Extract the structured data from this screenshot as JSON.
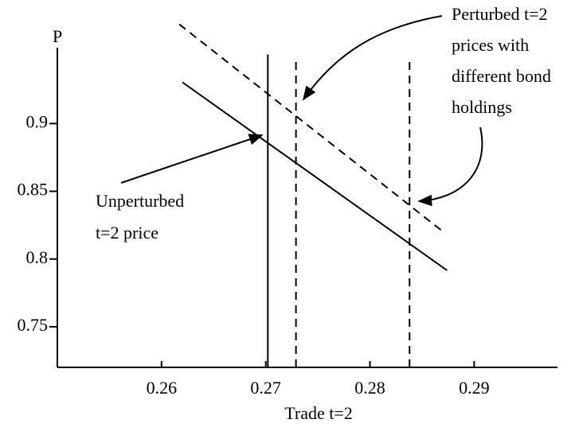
{
  "chart_data": {
    "type": "line",
    "ylabel_top": "P",
    "xlabel": "Trade t=2",
    "xlim": [
      0.25,
      0.298
    ],
    "ylim": [
      0.72,
      0.956
    ],
    "xticks": [
      0.26,
      0.27,
      0.28,
      0.29
    ],
    "yticks": [
      0.75,
      0.8,
      0.85,
      0.9
    ],
    "series": [
      {
        "color": "#000000",
        "dash": false,
        "x": [
          0.262,
          0.2874
        ],
        "values": [
          0.9305,
          0.7916
        ]
      },
      {
        "color": "#000000",
        "dash": true,
        "x": [
          0.2617,
          0.2869
        ],
        "values": [
          0.9733,
          0.8209
        ]
      },
      {
        "color": "#000000",
        "dash": false,
        "x": [
          0.2702,
          0.2702
        ],
        "values": [
          0.72,
          0.951
        ]
      },
      {
        "color": "#000000",
        "dash": true,
        "x": [
          0.2729,
          0.2729
        ],
        "values": [
          0.72,
          0.9469
        ]
      },
      {
        "color": "#000000",
        "dash": true,
        "x": [
          0.2838,
          0.2838
        ],
        "values": [
          0.72,
          0.9469
        ]
      }
    ],
    "annotations": [
      {
        "lines": [
          "Perturbed t=2",
          "prices with",
          "different bond",
          "holdings"
        ]
      },
      {
        "lines": [
          "Unperturbed",
          "t=2 price"
        ]
      }
    ]
  }
}
